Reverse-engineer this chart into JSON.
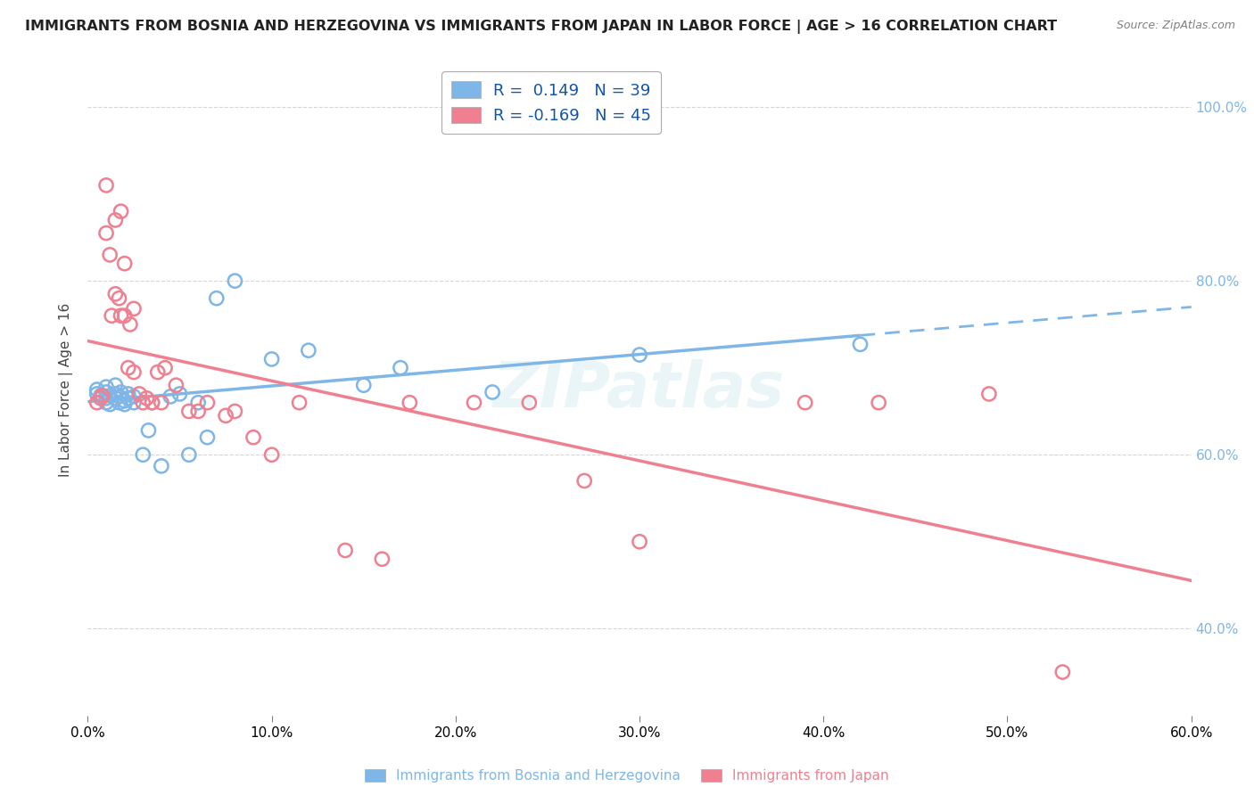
{
  "title": "IMMIGRANTS FROM BOSNIA AND HERZEGOVINA VS IMMIGRANTS FROM JAPAN IN LABOR FORCE | AGE > 16 CORRELATION CHART",
  "source": "Source: ZipAtlas.com",
  "ylabel": "In Labor Force | Age > 16",
  "xlim": [
    0.0,
    0.6
  ],
  "ylim": [
    0.3,
    1.05
  ],
  "xticks": [
    0.0,
    0.1,
    0.2,
    0.3,
    0.4,
    0.5,
    0.6
  ],
  "yticks": [
    0.4,
    0.6,
    0.8,
    1.0
  ],
  "ytick_labels": [
    "40.0%",
    "60.0%",
    "80.0%",
    "100.0%"
  ],
  "xtick_labels": [
    "0.0%",
    "10.0%",
    "20.0%",
    "30.0%",
    "40.0%",
    "50.0%",
    "60.0%"
  ],
  "bosnia_color": "#7EB6E8",
  "japan_color": "#F08090",
  "bosnia_R": 0.149,
  "bosnia_N": 39,
  "japan_R": -0.169,
  "japan_N": 45,
  "legend_label_bosnia": "Immigrants from Bosnia and Herzegovina",
  "legend_label_japan": "Immigrants from Japan",
  "bosnia_points_x": [
    0.005,
    0.005,
    0.007,
    0.01,
    0.01,
    0.01,
    0.01,
    0.012,
    0.012,
    0.015,
    0.015,
    0.015,
    0.017,
    0.017,
    0.018,
    0.02,
    0.02,
    0.022,
    0.022,
    0.025,
    0.025,
    0.03,
    0.033,
    0.035,
    0.04,
    0.045,
    0.05,
    0.055,
    0.06,
    0.065,
    0.07,
    0.08,
    0.1,
    0.12,
    0.15,
    0.17,
    0.22,
    0.3,
    0.42
  ],
  "bosnia_points_y": [
    0.67,
    0.675,
    0.668,
    0.66,
    0.665,
    0.672,
    0.678,
    0.658,
    0.668,
    0.665,
    0.67,
    0.68,
    0.66,
    0.667,
    0.672,
    0.658,
    0.662,
    0.665,
    0.67,
    0.66,
    0.667,
    0.6,
    0.628,
    0.66,
    0.587,
    0.667,
    0.67,
    0.6,
    0.66,
    0.62,
    0.78,
    0.8,
    0.71,
    0.72,
    0.68,
    0.7,
    0.672,
    0.715,
    0.727
  ],
  "japan_points_x": [
    0.005,
    0.007,
    0.008,
    0.01,
    0.01,
    0.012,
    0.013,
    0.015,
    0.015,
    0.017,
    0.018,
    0.018,
    0.02,
    0.02,
    0.022,
    0.023,
    0.025,
    0.025,
    0.028,
    0.03,
    0.032,
    0.035,
    0.038,
    0.04,
    0.042,
    0.048,
    0.055,
    0.06,
    0.065,
    0.075,
    0.08,
    0.09,
    0.1,
    0.115,
    0.14,
    0.16,
    0.175,
    0.21,
    0.24,
    0.27,
    0.3,
    0.39,
    0.43,
    0.49,
    0.53
  ],
  "japan_points_y": [
    0.66,
    0.665,
    0.668,
    0.855,
    0.91,
    0.83,
    0.76,
    0.87,
    0.785,
    0.78,
    0.76,
    0.88,
    0.76,
    0.82,
    0.7,
    0.75,
    0.695,
    0.768,
    0.67,
    0.66,
    0.665,
    0.66,
    0.695,
    0.66,
    0.7,
    0.68,
    0.65,
    0.65,
    0.66,
    0.645,
    0.65,
    0.62,
    0.6,
    0.66,
    0.49,
    0.48,
    0.66,
    0.66,
    0.66,
    0.57,
    0.5,
    0.66,
    0.66,
    0.67,
    0.35
  ],
  "watermark": "ZIPatlas",
  "background_color": "#FFFFFF",
  "grid_color": "#CCCCCC",
  "title_color": "#222222",
  "axis_label_color": "#444444",
  "tick_label_color": "#7EB6E8"
}
